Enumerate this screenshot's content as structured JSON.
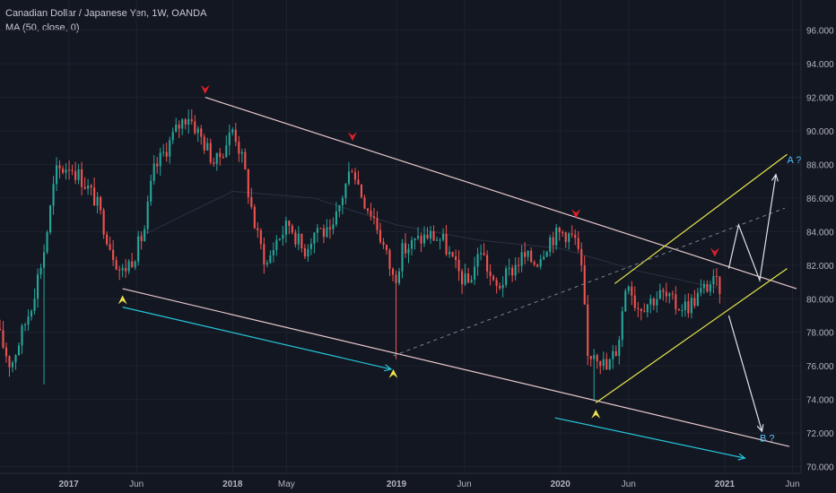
{
  "header": {
    "symbol_line": "Canadian Dollar / Japanese Yen, 1W, OANDA",
    "indicator_line": "MA (50, close, 0)"
  },
  "colors": {
    "background": "#131722",
    "up_candle": "#26a69a",
    "down_candle": "#ef5350",
    "channel_line": "#e8c9cc",
    "rising_channel": "#e6e84a",
    "projection_arrow": "#e0e3eb",
    "cyan_arrow": "#26c6da",
    "top_marker": "#e0202a",
    "bottom_marker": "#f2e34c",
    "label_a": "#4fc3f7",
    "label_b": "#4fc3f7"
  },
  "chart_data": {
    "type": "candlestick",
    "instrument": "Canadian Dollar / Japanese Yen",
    "timeframe": "1W",
    "source": "OANDA",
    "y_axis": {
      "range": [
        69.6,
        97.8
      ],
      "ticks": [
        "96.000",
        "94.000",
        "92.000",
        "90.000",
        "88.000",
        "86.000",
        "84.000",
        "82.000",
        "80.000",
        "78.000",
        "76.000",
        "74.000",
        "72.000",
        "70.000"
      ],
      "tick_values": [
        96,
        94,
        92,
        90,
        88,
        86,
        84,
        82,
        80,
        78,
        76,
        74,
        72,
        70
      ]
    },
    "x_axis": {
      "range": [
        "2016-08-01",
        "2021-06-20"
      ],
      "ticks": [
        {
          "label": "2017",
          "date": "2017-01-01"
        },
        {
          "label": "Jun",
          "date": "2017-06-01"
        },
        {
          "label": "2018",
          "date": "2018-01-01"
        },
        {
          "label": "May",
          "date": "2018-05-01"
        },
        {
          "label": "2019",
          "date": "2019-01-01"
        },
        {
          "label": "Jun",
          "date": "2019-06-01"
        },
        {
          "label": "2020",
          "date": "2020-01-01"
        },
        {
          "label": "Jun",
          "date": "2020-06-01"
        },
        {
          "label": "2021",
          "date": "2021-01-01"
        },
        {
          "label": "Jun",
          "date": "2021-06-01"
        }
      ]
    },
    "price_path": [
      [
        "2016-08-01",
        78.2
      ],
      [
        "2016-09-01",
        76.0
      ],
      [
        "2016-10-15",
        79.5
      ],
      [
        "2016-11-15",
        83.0
      ],
      [
        "2016-12-10",
        87.5
      ],
      [
        "2017-01-10",
        88.0
      ],
      [
        "2017-02-10",
        87.0
      ],
      [
        "2017-03-10",
        85.8
      ],
      [
        "2017-04-10",
        83.2
      ],
      [
        "2017-05-05",
        81.5
      ],
      [
        "2017-06-01",
        82.5
      ],
      [
        "2017-06-25",
        84.0
      ],
      [
        "2017-07-15",
        87.5
      ],
      [
        "2017-08-10",
        88.8
      ],
      [
        "2017-09-10",
        90.3
      ],
      [
        "2017-10-01",
        91.0
      ],
      [
        "2017-11-01",
        89.5
      ],
      [
        "2017-12-01",
        88.0
      ],
      [
        "2018-01-10",
        90.2
      ],
      [
        "2018-02-01",
        88.0
      ],
      [
        "2018-03-01",
        84.0
      ],
      [
        "2018-03-25",
        82.0
      ],
      [
        "2018-04-15",
        83.5
      ],
      [
        "2018-05-15",
        84.5
      ],
      [
        "2018-06-15",
        82.8
      ],
      [
        "2018-07-15",
        84.3
      ],
      [
        "2018-08-15",
        83.6
      ],
      [
        "2018-09-10",
        86.2
      ],
      [
        "2018-10-01",
        88.0
      ],
      [
        "2018-10-25",
        86.0
      ],
      [
        "2018-11-20",
        84.8
      ],
      [
        "2018-12-20",
        82.3
      ],
      [
        "2019-01-03",
        81.0
      ],
      [
        "2019-01-20",
        82.8
      ],
      [
        "2019-02-20",
        83.4
      ],
      [
        "2019-03-20",
        83.8
      ],
      [
        "2019-04-20",
        83.5
      ],
      [
        "2019-05-20",
        81.8
      ],
      [
        "2019-06-15",
        80.8
      ],
      [
        "2019-07-15",
        83.0
      ],
      [
        "2019-08-15",
        80.5
      ],
      [
        "2019-09-15",
        81.5
      ],
      [
        "2019-10-15",
        82.5
      ],
      [
        "2019-11-15",
        82.2
      ],
      [
        "2019-12-15",
        83.6
      ],
      [
        "2020-01-15",
        84.0
      ],
      [
        "2020-02-10",
        83.5
      ],
      [
        "2020-02-25",
        81.5
      ],
      [
        "2020-03-09",
        76.5
      ],
      [
        "2020-03-25",
        77.0
      ],
      [
        "2020-04-20",
        75.8
      ],
      [
        "2020-05-15",
        77.2
      ],
      [
        "2020-06-05",
        81.5
      ],
      [
        "2020-06-25",
        79.5
      ],
      [
        "2020-07-20",
        79.8
      ],
      [
        "2020-08-20",
        80.3
      ],
      [
        "2020-09-20",
        79.6
      ],
      [
        "2020-10-20",
        79.6
      ],
      [
        "2020-11-20",
        80.5
      ],
      [
        "2020-12-10",
        81.0
      ],
      [
        "2020-12-25",
        80.7
      ]
    ],
    "moving_average": {
      "name": "MA (50, close, 0)",
      "points": [
        [
          "2017-06-01",
          83.6
        ],
        [
          "2018-01-01",
          86.4
        ],
        [
          "2018-07-01",
          86.0
        ],
        [
          "2019-01-01",
          84.4
        ],
        [
          "2019-07-01",
          83.5
        ],
        [
          "2020-01-01",
          83.0
        ],
        [
          "2020-07-01",
          81.6
        ],
        [
          "2020-12-25",
          80.6
        ]
      ]
    },
    "annotations": {
      "descending_channel_upper": [
        [
          "2017-11-01",
          92.0
        ],
        [
          "2021-06-10",
          80.6
        ]
      ],
      "descending_channel_lower": [
        [
          "2017-05-01",
          80.6
        ],
        [
          "2021-05-25",
          71.2
        ]
      ],
      "rising_channel_upper": [
        [
          "2020-05-01",
          80.9
        ],
        [
          "2021-05-20",
          88.6
        ]
      ],
      "rising_channel_lower": [
        [
          "2020-03-20",
          73.8
        ],
        [
          "2021-05-20",
          81.8
        ]
      ],
      "dashed_trendline": [
        [
          "2018-12-25",
          76.6
        ],
        [
          "2021-05-15",
          85.4
        ]
      ],
      "cyan_arrow_1": [
        [
          "2017-05-01",
          79.5
        ],
        [
          "2018-12-20",
          75.8
        ]
      ],
      "cyan_arrow_2": [
        [
          "2019-12-20",
          72.9
        ],
        [
          "2021-02-15",
          70.5
        ]
      ],
      "projection_up": [
        [
          "2021-01-10",
          81.8
        ],
        [
          "2021-02-01",
          84.4
        ],
        [
          "2021-03-20",
          81.1
        ],
        [
          "2021-04-25",
          87.4
        ]
      ],
      "projection_down": [
        [
          "2021-01-10",
          79.0
        ],
        [
          "2021-03-25",
          72.1
        ]
      ],
      "top_markers": [
        [
          "2017-11-01",
          92.2
        ],
        [
          "2018-09-25",
          89.4
        ],
        [
          "2020-02-05",
          84.8
        ],
        [
          "2020-12-10",
          82.5
        ]
      ],
      "bottom_markers": [
        [
          "2017-05-01",
          80.2
        ],
        [
          "2018-12-25",
          75.8
        ],
        [
          "2020-03-20",
          73.4
        ]
      ],
      "labels": [
        {
          "text": "A ?",
          "date": "2021-05-20",
          "price": 88.3
        },
        {
          "text": "B ?",
          "date": "2021-03-20",
          "price": 71.7
        }
      ]
    }
  }
}
